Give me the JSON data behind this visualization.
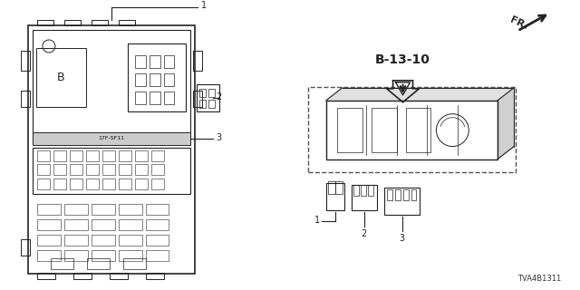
{
  "bg_color": "#ffffff",
  "fig_width": 6.4,
  "fig_height": 3.2,
  "dpi": 100,
  "part_label": "B-13-10",
  "callout_numbers_left": [
    "1",
    "2",
    "3"
  ],
  "callout_numbers_right": [
    "1",
    "2",
    "3"
  ],
  "part_code": "TVA4B1311",
  "fr_label": "FR.",
  "line_color": "#222222",
  "dashed_box_color": "#555555"
}
